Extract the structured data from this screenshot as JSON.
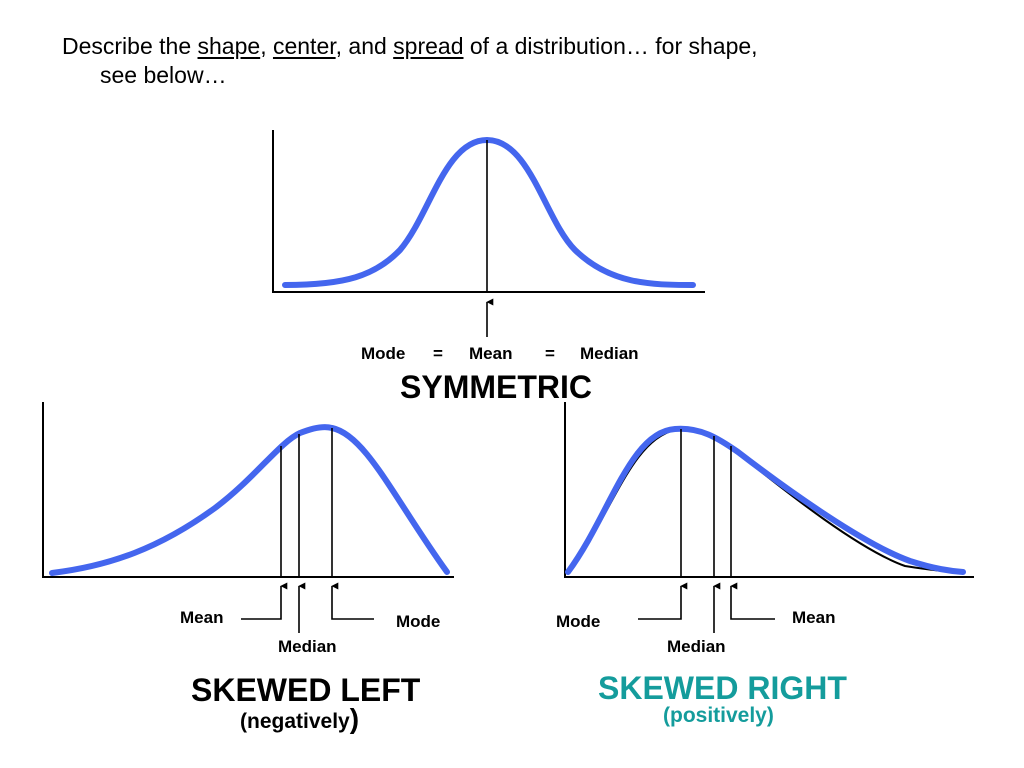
{
  "heading": {
    "part1": "Describe the ",
    "shape": "shape",
    "sep1": ", ",
    "center": "center",
    "sep2": ", and ",
    "spread": "spread",
    "part2": " of a distribution… for shape,",
    "line2": "see below…"
  },
  "symmetric": {
    "title": "SYMMETRIC",
    "labels": {
      "mode": "Mode",
      "eq1": "=",
      "mean": "Mean",
      "eq2": "=",
      "median": "Median"
    }
  },
  "skewed_left": {
    "title": "SKEWED LEFT",
    "subtitle": "(negatively",
    "paren": ")",
    "labels": {
      "mean": "Mean",
      "median": "Median",
      "mode": "Mode"
    }
  },
  "skewed_right": {
    "title": "SKEWED RIGHT",
    "subtitle": "(positively)",
    "labels": {
      "mode": "Mode",
      "median": "Median",
      "mean": "Mean"
    }
  },
  "colors": {
    "curve": "#4466ee",
    "skewed_right_title": "#149c9c"
  }
}
